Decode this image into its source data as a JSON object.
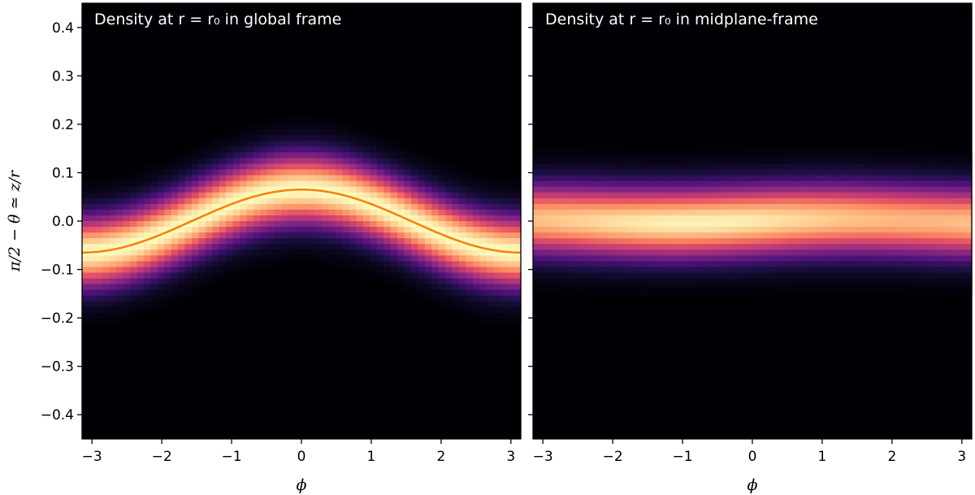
{
  "chart_data": [
    {
      "type": "heatmap",
      "title": "Density at r = r₀ in global frame",
      "xlabel": "ϕ",
      "ylabel": "π/2 − θ ≃ z/r",
      "xlim": [
        -3.14159,
        3.14159
      ],
      "ylim": [
        -0.45,
        0.45
      ],
      "x_ticks": [
        -3,
        -2,
        -1,
        0,
        1,
        2,
        3
      ],
      "y_ticks": [
        -0.4,
        -0.3,
        -0.2,
        -0.1,
        0.0,
        0.1,
        0.2,
        0.3,
        0.4
      ],
      "x_tick_labels": [
        "−3",
        "−2",
        "−1",
        "0",
        "1",
        "2",
        "3"
      ],
      "y_tick_labels": [
        "−0.4",
        "−0.3",
        "−0.2",
        "−0.1",
        "0.0",
        "0.1",
        "0.2",
        "0.3",
        "0.4"
      ],
      "colormap": "magma",
      "density_band": {
        "center": "0.065*cos(phi)",
        "width": 0.05
      },
      "overlay_line": {
        "x": [
          -3.14,
          -2.5,
          -2.0,
          -1.5,
          -1.0,
          -0.5,
          0.0,
          0.5,
          1.0,
          1.5,
          2.0,
          2.5,
          3.14
        ],
        "y": [
          -0.065,
          -0.052,
          -0.027,
          0.005,
          0.035,
          0.057,
          0.065,
          0.057,
          0.035,
          0.005,
          -0.027,
          -0.052,
          -0.065
        ],
        "color": "#ff7f0e"
      }
    },
    {
      "type": "heatmap",
      "title": "Density at r = r₀ in midplane-frame",
      "xlabel": "ϕ",
      "xlim": [
        -3.14159,
        3.14159
      ],
      "ylim": [
        -0.45,
        0.45
      ],
      "x_ticks": [
        -3,
        -2,
        -1,
        0,
        1,
        2,
        3
      ],
      "x_tick_labels": [
        "−3",
        "−2",
        "−1",
        "0",
        "1",
        "2",
        "3"
      ],
      "colormap": "magma",
      "density_band": {
        "center": "0.0",
        "width": 0.05
      }
    }
  ]
}
